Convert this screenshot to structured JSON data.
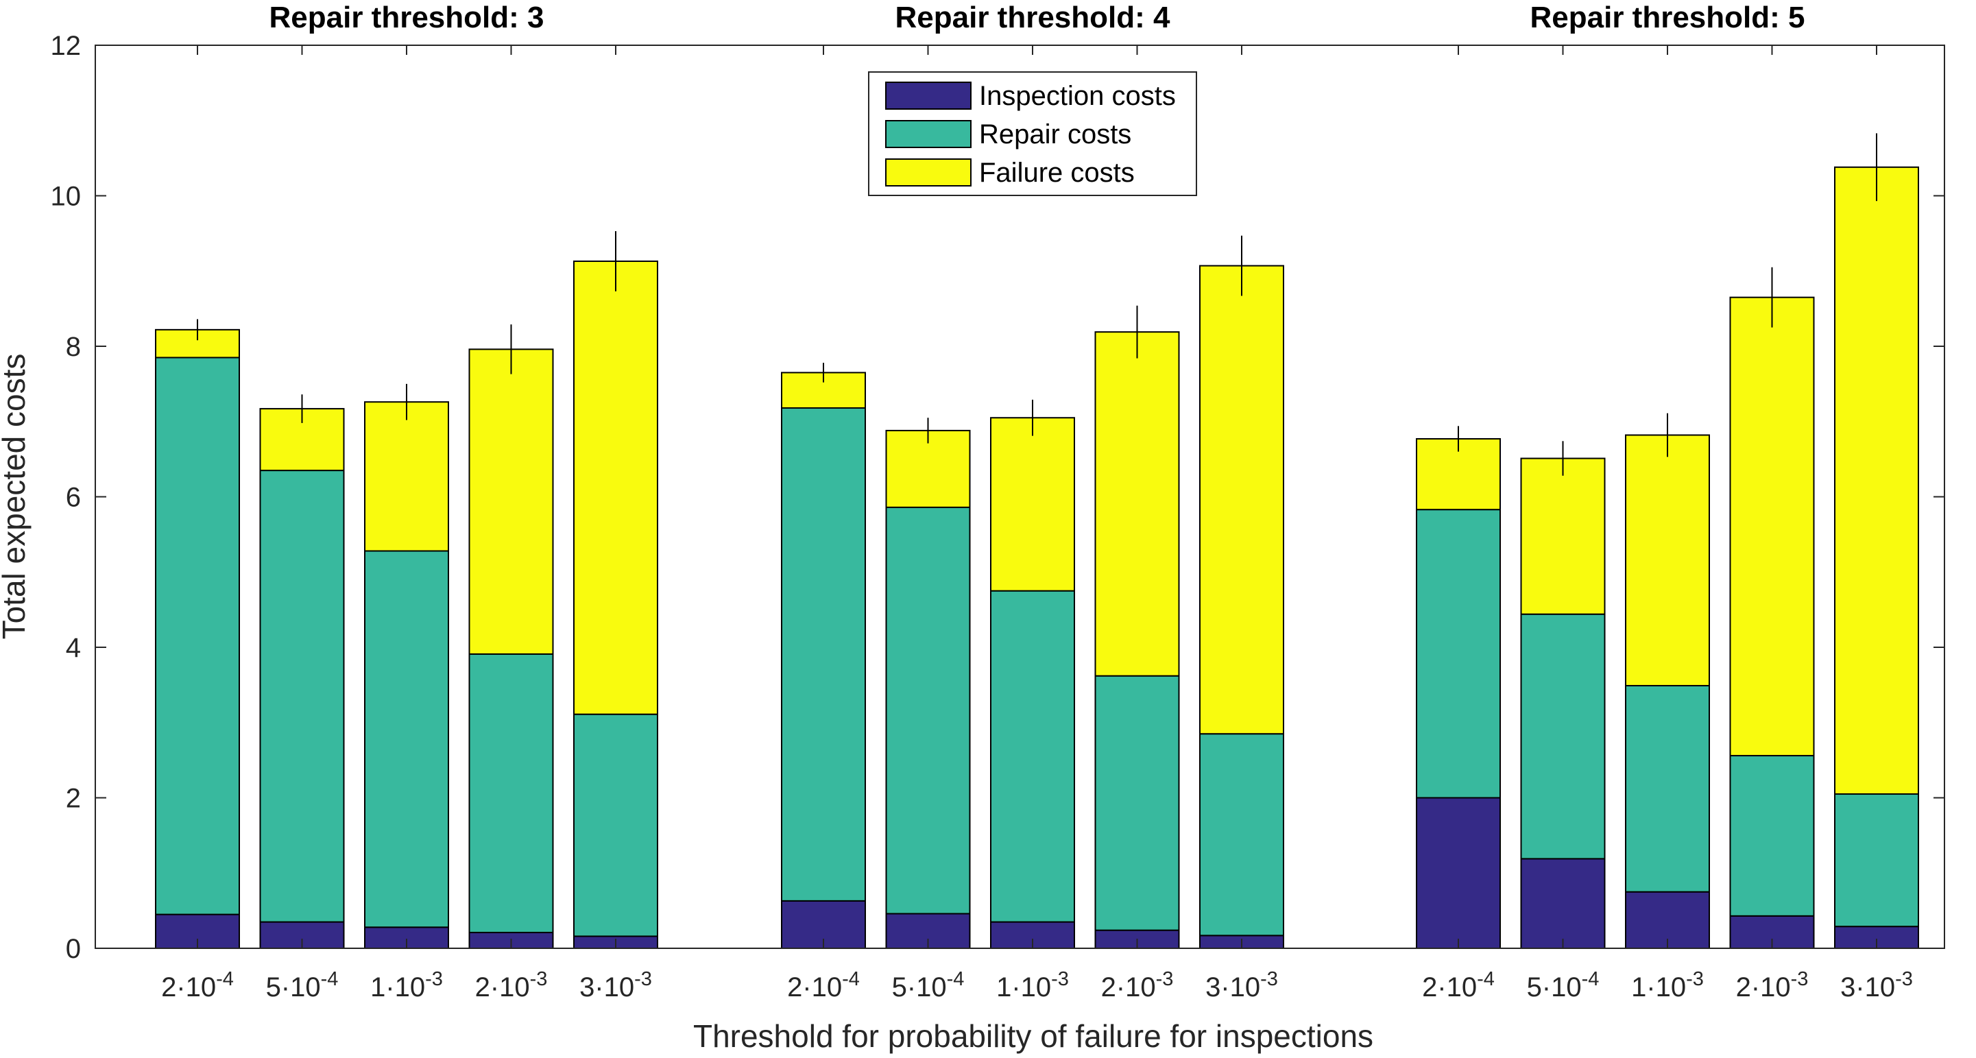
{
  "chart_data": {
    "type": "bar",
    "stacked": true,
    "ylabel": "Total expected costs",
    "xlabel": "Threshold for probability of failure for inspections",
    "ylim": [
      0,
      12
    ],
    "yticks": [
      0,
      2,
      4,
      6,
      8,
      10,
      12
    ],
    "grid": false,
    "legend_position": "top-center",
    "categories": [
      {
        "base": "2·10",
        "exp": "-4"
      },
      {
        "base": "5·10",
        "exp": "-4"
      },
      {
        "base": "1·10",
        "exp": "-3"
      },
      {
        "base": "2·10",
        "exp": "-3"
      },
      {
        "base": "3·10",
        "exp": "-3"
      }
    ],
    "series_info": [
      {
        "name": "Inspection costs",
        "color": "#352a87"
      },
      {
        "name": "Repair costs",
        "color": "#38b99e"
      },
      {
        "name": "Failure costs",
        "color": "#f9fb0e"
      }
    ],
    "groups": [
      {
        "title": "Repair threshold: 3",
        "inspection": [
          0.45,
          0.35,
          0.28,
          0.21,
          0.16
        ],
        "repair": [
          7.4,
          6.0,
          5.0,
          3.7,
          2.95
        ],
        "failure": [
          0.37,
          0.82,
          1.98,
          4.05,
          6.02
        ],
        "error": [
          0.14,
          0.19,
          0.24,
          0.33,
          0.4
        ]
      },
      {
        "title": "Repair threshold: 4",
        "inspection": [
          0.63,
          0.46,
          0.35,
          0.24,
          0.17
        ],
        "repair": [
          6.55,
          5.4,
          4.4,
          3.38,
          2.68
        ],
        "failure": [
          0.47,
          1.02,
          2.3,
          4.57,
          6.22
        ],
        "error": [
          0.13,
          0.17,
          0.24,
          0.35,
          0.4
        ]
      },
      {
        "title": "Repair threshold: 5",
        "inspection": [
          2.0,
          1.19,
          0.75,
          0.43,
          0.29
        ],
        "repair": [
          3.83,
          3.25,
          2.74,
          2.13,
          1.76
        ],
        "failure": [
          0.94,
          2.07,
          3.33,
          6.09,
          8.33
        ],
        "error": [
          0.17,
          0.23,
          0.29,
          0.4,
          0.45
        ]
      }
    ]
  }
}
